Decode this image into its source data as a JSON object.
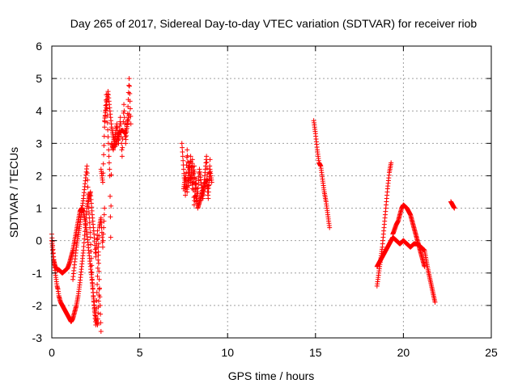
{
  "chart_data": {
    "type": "scatter",
    "title": "Day 265 of 2017, Sidereal Day-to-day VTEC variation (SDTVAR) for receiver riob",
    "xlabel": "GPS time / hours",
    "ylabel": "SDTVAR / TECUs",
    "xlim": [
      0,
      25
    ],
    "ylim": [
      -3,
      6
    ],
    "xticks": [
      0,
      5,
      10,
      15,
      20,
      25
    ],
    "yticks": [
      -3,
      -2,
      -1,
      0,
      1,
      2,
      3,
      4,
      5,
      6
    ],
    "grid": true,
    "marker": "+",
    "color": "#ff0000",
    "series": [
      {
        "name": "SDTVAR",
        "segments": [
          {
            "x": [
              0.0,
              0.1,
              0.2,
              0.3,
              0.35,
              0.4,
              0.5,
              0.6,
              0.7,
              0.8,
              0.9,
              1.0,
              1.1,
              1.2,
              1.3,
              1.4,
              1.5,
              1.6,
              1.7,
              1.8,
              1.9,
              2.0,
              2.1,
              2.2,
              2.3,
              2.4,
              2.5,
              2.6,
              2.7,
              2.8
            ],
            "y": [
              0.2,
              -0.5,
              -1.0,
              -1.4,
              -1.5,
              -1.7,
              -1.9,
              -2.0,
              -2.1,
              -2.2,
              -2.3,
              -2.4,
              -2.5,
              -2.4,
              -2.2,
              -2.0,
              -1.7,
              -1.3,
              -0.8,
              -0.3,
              0.4,
              1.0,
              1.3,
              1.5,
              0.8,
              0.2,
              -0.5,
              0.3,
              -1.2,
              -2.8
            ]
          },
          {
            "x": [
              0.0,
              0.1,
              0.2,
              0.3,
              0.4,
              0.5,
              0.6,
              0.7,
              0.8,
              0.9,
              1.0,
              1.1,
              1.2,
              1.3,
              1.4,
              1.5,
              1.6,
              1.7,
              1.8,
              1.9,
              2.0,
              2.1,
              2.2,
              2.3,
              2.4,
              2.5,
              2.6,
              2.7
            ],
            "y": [
              0.0,
              -0.6,
              -0.8,
              -0.9,
              -0.9,
              -0.95,
              -1.0,
              -0.95,
              -0.9,
              -0.85,
              -0.7,
              -0.5,
              -0.3,
              0.0,
              0.3,
              0.6,
              0.9,
              1.0,
              0.9,
              0.6,
              0.2,
              -0.3,
              -0.8,
              -1.3,
              -1.9,
              -2.4,
              -2.6,
              -1.5
            ]
          },
          {
            "x": [
              1.2,
              1.4,
              1.6,
              1.8,
              2.0,
              2.1,
              2.2,
              2.3,
              2.4,
              2.5,
              2.6,
              2.7,
              2.8,
              2.9,
              3.0
            ],
            "y": [
              -1.2,
              -0.2,
              0.5,
              1.3,
              2.3,
              1.0,
              0.1,
              -1.2,
              -2.0,
              -2.6,
              -1.1,
              0.4,
              0.7,
              -0.2,
              1.0
            ]
          },
          {
            "x": [
              2.8,
              2.9,
              3.0,
              3.1,
              3.2,
              3.3,
              3.35,
              3.4,
              3.5,
              3.6,
              3.7,
              3.8,
              3.9,
              4.0,
              4.1,
              4.2,
              4.3,
              4.4,
              4.5
            ],
            "y": [
              2.2,
              1.8,
              3.5,
              4.5,
              3.2,
              2.0,
              0.1,
              3.0,
              2.8,
              3.2,
              3.6,
              3.0,
              3.8,
              2.6,
              4.2,
              3.0,
              3.7,
              5.0,
              3.6
            ]
          },
          {
            "x": [
              3.0,
              3.2,
              3.4,
              3.6,
              3.8,
              4.0,
              4.2,
              4.4
            ],
            "y": [
              3.7,
              4.6,
              3.5,
              2.9,
              3.3,
              3.4,
              3.3,
              3.9
            ]
          },
          {
            "x": [
              7.4,
              7.5,
              7.6,
              7.7,
              7.8,
              7.9,
              8.0,
              8.1,
              8.2,
              8.3,
              8.4,
              8.6,
              8.7,
              8.8,
              8.9,
              9.0,
              9.1
            ],
            "y": [
              3.0,
              2.2,
              1.4,
              2.8,
              1.7,
              2.6,
              1.6,
              2.3,
              1.2,
              1.5,
              2.2,
              1.3,
              2.0,
              2.6,
              1.5,
              2.2,
              1.8
            ]
          },
          {
            "x": [
              7.5,
              7.6,
              7.7,
              7.8,
              7.9,
              8.0,
              8.1,
              8.2,
              8.3,
              8.8,
              8.9,
              9.0
            ],
            "y": [
              1.6,
              2.0,
              1.5,
              2.4,
              1.8,
              2.5,
              1.1,
              1.9,
              1.0,
              1.9,
              1.3,
              2.5
            ]
          },
          {
            "x": [
              14.9,
              15.0,
              15.1,
              15.2,
              15.3,
              15.4,
              15.5,
              15.6,
              15.7,
              15.8
            ],
            "y": [
              3.7,
              3.3,
              2.8,
              2.4,
              2.3,
              1.9,
              1.5,
              1.2,
              0.8,
              0.4
            ]
          },
          {
            "x": [
              18.5,
              18.6,
              18.7,
              18.8,
              18.9,
              19.0,
              19.1,
              19.2,
              19.3
            ],
            "y": [
              -1.4,
              -1.0,
              -0.6,
              -0.2,
              0.4,
              1.0,
              1.6,
              2.1,
              2.4
            ]
          },
          {
            "x": [
              18.5,
              18.6,
              18.8,
              19.0,
              19.2,
              19.4,
              19.6,
              19.8,
              20.0,
              20.2,
              20.4,
              20.6,
              20.8,
              21.0,
              21.2,
              21.4,
              21.6,
              21.8
            ],
            "y": [
              -0.8,
              -0.7,
              -0.5,
              -0.3,
              -0.1,
              0.1,
              0.0,
              -0.1,
              0.0,
              -0.1,
              -0.2,
              -0.1,
              -0.1,
              -0.2,
              -0.3,
              -0.9,
              -1.4,
              -1.9
            ]
          },
          {
            "x": [
              19.4,
              19.6,
              19.7,
              19.8,
              19.9,
              20.0,
              20.1,
              20.2,
              20.3,
              20.4,
              20.5,
              20.6,
              20.7,
              20.8,
              20.9,
              21.0,
              21.1,
              21.2
            ],
            "y": [
              0.2,
              0.5,
              0.6,
              0.8,
              1.0,
              1.1,
              1.05,
              1.0,
              0.9,
              0.8,
              0.6,
              0.4,
              0.2,
              0.0,
              -0.2,
              -0.4,
              -0.6,
              -0.8
            ]
          },
          {
            "x": [
              22.7,
              22.8,
              22.9
            ],
            "y": [
              1.2,
              1.1,
              1.0
            ]
          }
        ]
      }
    ]
  }
}
